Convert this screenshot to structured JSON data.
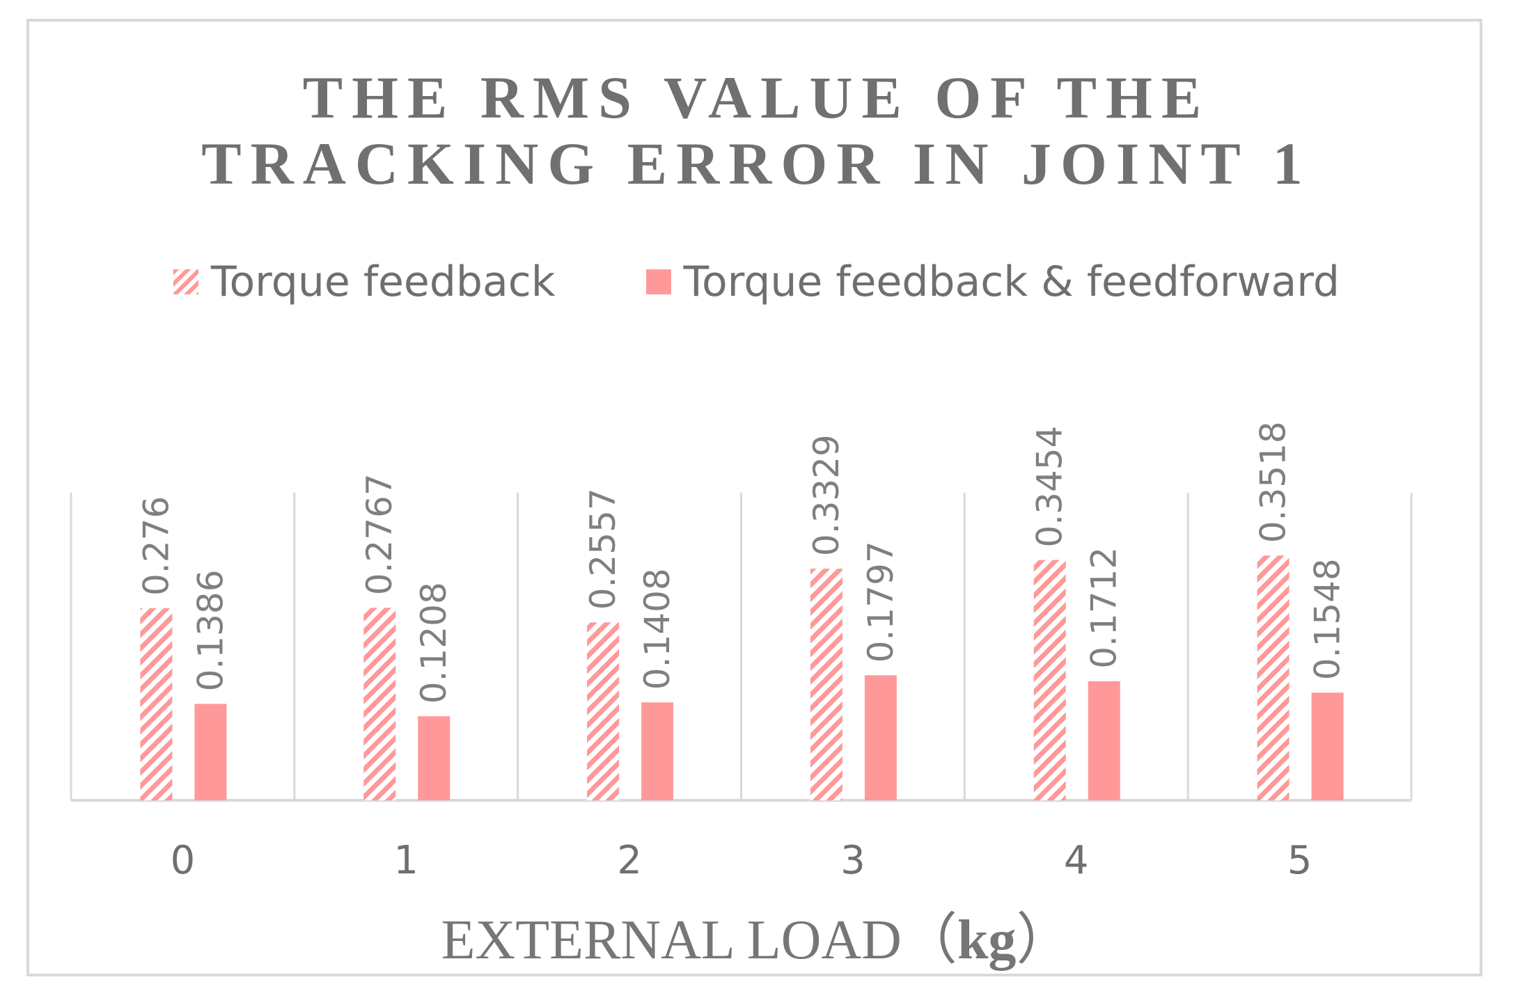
{
  "chart_data": {
    "type": "bar",
    "title_lines": [
      "THE RMS VALUE OF THE",
      "TRACKING ERROR IN JOINT 1"
    ],
    "xlabel": {
      "text": "EXTERNAL LOAD",
      "unit_open": "（",
      "unit": "kg",
      "unit_close": "）"
    },
    "ylabel": "",
    "categories": [
      "0",
      "1",
      "2",
      "3",
      "4",
      "5"
    ],
    "series": [
      {
        "name": "Torque feedback",
        "values": [
          0.276,
          0.2767,
          0.2557,
          0.3329,
          0.3454,
          0.3518
        ],
        "labels": [
          "0.276",
          "0.2767",
          "0.2557",
          "0.3329",
          "0.3454",
          "0.3518"
        ],
        "pattern": "hatched"
      },
      {
        "name": "Torque feedback & feedforward",
        "values": [
          0.1386,
          0.1208,
          0.1408,
          0.1797,
          0.1712,
          0.1548
        ],
        "labels": [
          "0.1386",
          "0.1208",
          "0.1408",
          "0.1797",
          "0.1712",
          "0.1548"
        ],
        "pattern": "solid"
      }
    ],
    "ylim": [
      0,
      0.4
    ],
    "grid": false,
    "legend_position": "top",
    "colors": {
      "bar": "#ff9999",
      "axis": "#d9d9d9",
      "text": "#7f7f7f",
      "title": "#707070"
    }
  }
}
